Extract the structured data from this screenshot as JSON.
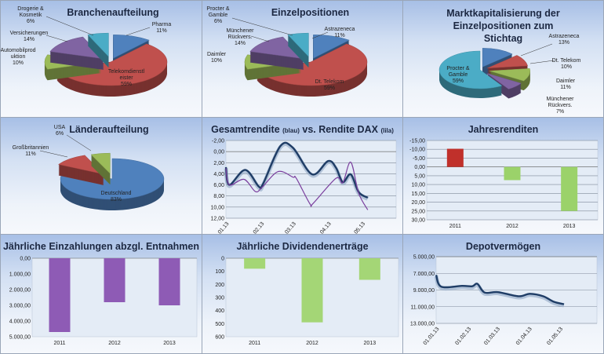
{
  "chart_data": [
    {
      "id": "branchen",
      "type": "pie",
      "title": "Branchenaufteilung",
      "slices": [
        {
          "label": "Pharma",
          "pct": "11%",
          "value": 11,
          "color": "#4f81bd"
        },
        {
          "label": "Telekomdienstleister",
          "display": "Telekomdienstl\neister",
          "pct": "59%",
          "value": 59,
          "color": "#c0504d"
        },
        {
          "label": "Automobilproduktion",
          "display": "Automobilprod\nuktion",
          "pct": "10%",
          "value": 10,
          "color": "#9bbb59"
        },
        {
          "label": "Versicherungen",
          "pct": "14%",
          "value": 14,
          "color": "#8064a2"
        },
        {
          "label": "Drogerie & Kosmetik",
          "display": "Drogerie &\nKosmetik",
          "pct": "6%",
          "value": 6,
          "color": "#4bacc6"
        }
      ]
    },
    {
      "id": "einzel",
      "type": "pie",
      "title": "Einzelpositionen",
      "slices": [
        {
          "label": "Astrazeneca",
          "pct": "11%",
          "value": 11,
          "color": "#4f81bd"
        },
        {
          "label": "Dt. Telekom",
          "pct": "59%",
          "value": 59,
          "color": "#c0504d"
        },
        {
          "label": "Daimler",
          "pct": "10%",
          "value": 10,
          "color": "#9bbb59"
        },
        {
          "label": "Münchener Rückvers.",
          "display": "Münchener\nRückvers.",
          "pct": "14%",
          "value": 14,
          "color": "#8064a2"
        },
        {
          "label": "Procter & Gamble",
          "display": "Procter &\nGamble",
          "pct": "6%",
          "value": 6,
          "color": "#4bacc6"
        }
      ]
    },
    {
      "id": "marktkap",
      "type": "pie",
      "title": "Marktkapitalisierung der Einzelpositionen zum Stichtag",
      "slices": [
        {
          "label": "Astrazeneca",
          "pct": "13%",
          "value": 13,
          "color": "#4f81bd"
        },
        {
          "label": "Dt. Telekom",
          "pct": "10%",
          "value": 10,
          "color": "#c0504d"
        },
        {
          "label": "Daimler",
          "pct": "11%",
          "value": 11,
          "color": "#9bbb59"
        },
        {
          "label": "Münchener Rückvers.",
          "display": "Münchener\nRückvers.",
          "pct": "7%",
          "value": 7,
          "color": "#8064a2"
        },
        {
          "label": "Procter & Gamble",
          "display": "Procter &\nGamble",
          "pct": "59%",
          "value": 59,
          "color": "#4bacc6"
        }
      ]
    },
    {
      "id": "laender",
      "type": "pie",
      "title": "Länderaufteilung",
      "slices": [
        {
          "label": "Deutschland",
          "pct": "83%",
          "value": 83,
          "color": "#4f81bd"
        },
        {
          "label": "Großbritannien",
          "pct": "11%",
          "value": 11,
          "color": "#c0504d"
        },
        {
          "label": "USA",
          "pct": "6%",
          "value": 6,
          "color": "#9bbb59"
        }
      ]
    },
    {
      "id": "rendite",
      "type": "line",
      "title": "Gesamtrendite",
      "title_blue": "(blau)",
      "title_mid": "vs. Rendite DAX",
      "title_lila": "(lila)",
      "ylim": [
        -2,
        12
      ],
      "yticks": [
        "-2,00",
        "0,00",
        "2,00",
        "4,00",
        "6,00",
        "8,00",
        "10,00",
        "12,00"
      ],
      "xticks": [
        "01.01.13",
        "01.02.13",
        "01.03.13",
        "01.04.13",
        "01.05.13"
      ],
      "xlim": [
        "01.01.13",
        "31.05.13"
      ],
      "grid": true,
      "series": [
        {
          "color": "#1f3d66",
          "points": [
            [
              "01.01.13",
              2.8
            ],
            [
              "04.01.13",
              6.0
            ],
            [
              "18.01.13",
              3.3
            ],
            [
              "30.01.13",
              6.3
            ],
            [
              "03.02.13",
              5.7
            ],
            [
              "18.02.13",
              -1.0
            ],
            [
              "01.03.13",
              -0.7
            ],
            [
              "18.03.13",
              4.1
            ],
            [
              "01.04.13",
              1.7
            ],
            [
              "08.04.13",
              2.9
            ],
            [
              "14.04.13",
              5.5
            ],
            [
              "21.04.13",
              4.1
            ],
            [
              "28.04.13",
              7.3
            ],
            [
              "06.05.13",
              8.3
            ]
          ]
        },
        {
          "color": "#7b3f9e",
          "points": [
            [
              "01.01.13",
              3.0
            ],
            [
              "04.01.13",
              6.0
            ],
            [
              "17.01.13",
              5.0
            ],
            [
              "27.01.13",
              7.2
            ],
            [
              "02.02.13",
              6.4
            ],
            [
              "16.02.13",
              3.6
            ],
            [
              "01.03.13",
              4.6
            ],
            [
              "04.03.13",
              4.8
            ],
            [
              "16.03.13",
              9.4
            ],
            [
              "19.03.13",
              9.3
            ],
            [
              "08.04.13",
              4.8
            ],
            [
              "14.04.13",
              5.6
            ],
            [
              "21.04.13",
              1.9
            ],
            [
              "28.04.13",
              7.5
            ],
            [
              "06.05.13",
              10.5
            ]
          ]
        }
      ]
    },
    {
      "id": "jahres",
      "type": "bar",
      "title": "Jahresrenditen",
      "categories": [
        "2011",
        "2012",
        "2013"
      ],
      "values": [
        -10.3,
        7.5,
        25.0
      ],
      "colors": [
        "#c0302b",
        "#9bd26a",
        "#9bd26a"
      ],
      "ylim": [
        -15,
        30
      ],
      "yticks": [
        "-15,00",
        "-10,00",
        "-5,00",
        "0,00",
        "5,00",
        "10,00",
        "15,00",
        "20,00",
        "25,00",
        "30,00"
      ],
      "negative_tick_color": "#c00000",
      "grid": true
    },
    {
      "id": "einzahl",
      "type": "bar",
      "title": "Jährliche Einzahlungen abzgl. Entnahmen",
      "categories": [
        "2011",
        "2012",
        "2013"
      ],
      "values": [
        4700,
        2800,
        3000
      ],
      "colors": [
        "#8e5bb5",
        "#8e5bb5",
        "#8e5bb5"
      ],
      "ylim": [
        0,
        5000
      ],
      "yticks": [
        "0,00",
        "1.000,00",
        "2.000,00",
        "3.000,00",
        "4.000,00",
        "5.000,00"
      ],
      "grid": false
    },
    {
      "id": "divid",
      "type": "bar",
      "title": "Jährliche Dividendenerträge",
      "categories": [
        "2011",
        "2012",
        "2013"
      ],
      "values": [
        80,
        490,
        165
      ],
      "colors": [
        "#a4d676",
        "#a4d676",
        "#a4d676"
      ],
      "ylim": [
        0,
        600
      ],
      "yticks": [
        "0",
        "100",
        "200",
        "300",
        "400",
        "500",
        "600"
      ],
      "grid": false
    },
    {
      "id": "depot",
      "type": "line",
      "title": "Depotvermögen",
      "ylim": [
        5000,
        13000
      ],
      "yticks": [
        "5.000,00",
        "7.000,00",
        "9.000,00",
        "11.000,00",
        "13.000,00"
      ],
      "xticks": [
        "01.01.13",
        "01.02.13",
        "01.03.13",
        "01.04.13",
        "01.05.13"
      ],
      "xlim": [
        "01.01.13",
        "06.06.13"
      ],
      "grid": true,
      "series": [
        {
          "color": "#1f3d66",
          "points": [
            [
              "01.01.13",
              7200
            ],
            [
              "06.01.13",
              8600
            ],
            [
              "26.01.13",
              8500
            ],
            [
              "05.02.13",
              8550
            ],
            [
              "10.02.13",
              8250
            ],
            [
              "17.02.13",
              9300
            ],
            [
              "02.03.13",
              9250
            ],
            [
              "22.03.13",
              9750
            ],
            [
              "02.04.13",
              9450
            ],
            [
              "15.04.13",
              9750
            ],
            [
              "25.04.13",
              10400
            ],
            [
              "05.05.13",
              10700
            ]
          ]
        }
      ]
    }
  ]
}
